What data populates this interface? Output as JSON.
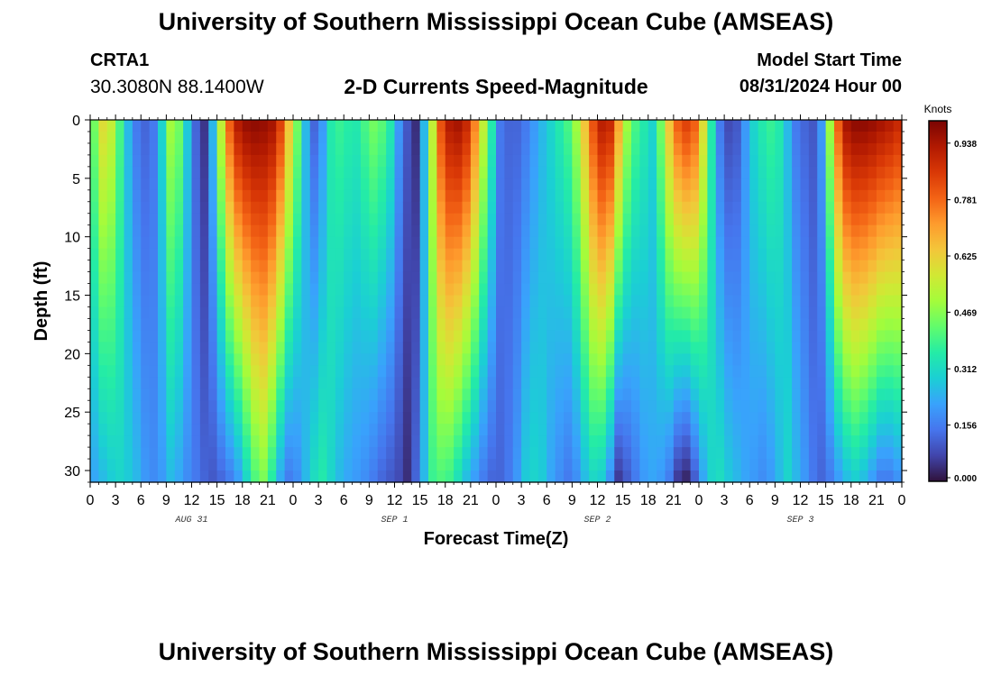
{
  "header": {
    "title": "University of Southern Mississippi Ocean Cube (AMSEAS)",
    "station_name": "CRTA1",
    "station_coords": "30.3080N  88.1400W",
    "product": "2-D Currents Speed-Magnitude",
    "model_start_label": "Model Start Time",
    "model_start_value": "08/31/2024 Hour 00"
  },
  "footer": {
    "title": "University of Southern Mississippi Ocean Cube (AMSEAS)"
  },
  "chart_data": {
    "type": "heatmap",
    "title": "2-D Currents Speed-Magnitude",
    "xlabel": "Forecast Time(Z)",
    "ylabel": "Depth (ft)",
    "x_range_hours": [
      0,
      96
    ],
    "ylim": [
      0,
      31
    ],
    "y_inverted": true,
    "y_ticks": [
      0,
      5,
      10,
      15,
      20,
      25,
      30
    ],
    "x_tick_labels": [
      "0",
      "3",
      "6",
      "9",
      "12",
      "15",
      "18",
      "21",
      "0",
      "3",
      "6",
      "9",
      "12",
      "15",
      "18",
      "21",
      "0",
      "3",
      "6",
      "9",
      "12",
      "15",
      "18",
      "21",
      "0",
      "3",
      "6",
      "9",
      "12",
      "15",
      "18",
      "21",
      "0"
    ],
    "day_labels": [
      {
        "text": "AUG 31",
        "hour": 12
      },
      {
        "text": "SEP 1",
        "hour": 36
      },
      {
        "text": "SEP 2",
        "hour": 60
      },
      {
        "text": "SEP 3",
        "hour": 84
      }
    ],
    "colorbar": {
      "title": "Knots",
      "min": 0.0,
      "max": 1.0,
      "ticks": [
        "0.938",
        "0.781",
        "0.625",
        "0.469",
        "0.312",
        "0.156",
        "0.000"
      ],
      "colors": [
        "#30123b",
        "#4145ab",
        "#4675ed",
        "#39a2fc",
        "#1bcfd4",
        "#24eca6",
        "#61fc6c",
        "#a4fc3b",
        "#d1e834",
        "#f3c63a",
        "#fe9b2d",
        "#f36315",
        "#d93806",
        "#b11901",
        "#7a0403"
      ]
    },
    "speed_profiles_knots": {
      "hours": [
        0,
        1,
        2,
        3,
        4,
        5,
        6,
        7,
        8,
        9,
        10,
        11,
        12,
        13,
        14,
        15,
        16,
        17,
        18,
        19,
        20,
        21,
        22,
        23,
        24,
        25,
        26,
        27,
        28,
        29,
        30,
        31,
        32,
        33,
        34,
        35,
        36,
        37,
        38,
        39,
        40,
        41,
        42,
        43,
        44,
        45,
        46,
        47,
        48,
        49,
        50,
        51,
        52,
        53,
        54,
        55,
        56,
        57,
        58,
        59,
        60,
        61,
        62,
        63,
        64,
        65,
        66,
        67,
        68,
        69,
        70,
        71,
        72,
        73,
        74,
        75,
        76,
        77,
        78,
        79,
        80,
        81,
        82,
        83,
        84,
        85,
        86,
        87,
        88,
        89,
        90,
        91,
        92,
        93,
        94,
        95
      ],
      "surface": [
        0.45,
        0.6,
        0.55,
        0.4,
        0.25,
        0.15,
        0.12,
        0.15,
        0.3,
        0.5,
        0.45,
        0.28,
        0.12,
        0.05,
        0.25,
        0.55,
        0.8,
        0.93,
        0.97,
        0.98,
        0.97,
        0.95,
        0.85,
        0.65,
        0.45,
        0.25,
        0.12,
        0.2,
        0.35,
        0.38,
        0.36,
        0.35,
        0.4,
        0.45,
        0.42,
        0.35,
        0.2,
        0.1,
        0.04,
        0.25,
        0.55,
        0.82,
        0.93,
        0.95,
        0.9,
        0.75,
        0.55,
        0.35,
        0.15,
        0.12,
        0.12,
        0.15,
        0.2,
        0.25,
        0.3,
        0.35,
        0.4,
        0.5,
        0.65,
        0.82,
        0.92,
        0.9,
        0.7,
        0.5,
        0.4,
        0.35,
        0.3,
        0.45,
        0.65,
        0.8,
        0.85,
        0.8,
        0.6,
        0.35,
        0.15,
        0.08,
        0.1,
        0.2,
        0.3,
        0.35,
        0.38,
        0.35,
        0.25,
        0.15,
        0.12,
        0.1,
        0.2,
        0.5,
        0.8,
        0.95,
        0.98,
        0.98,
        0.97,
        0.95,
        0.93,
        0.9
      ],
      "bottom": [
        0.22,
        0.25,
        0.28,
        0.3,
        0.28,
        0.25,
        0.2,
        0.18,
        0.2,
        0.25,
        0.22,
        0.18,
        0.15,
        0.12,
        0.1,
        0.12,
        0.15,
        0.2,
        0.3,
        0.4,
        0.45,
        0.35,
        0.22,
        0.15,
        0.18,
        0.25,
        0.32,
        0.35,
        0.3,
        0.25,
        0.22,
        0.2,
        0.18,
        0.15,
        0.12,
        0.1,
        0.08,
        0.04,
        0.12,
        0.25,
        0.38,
        0.4,
        0.38,
        0.32,
        0.25,
        0.2,
        0.15,
        0.12,
        0.12,
        0.15,
        0.2,
        0.28,
        0.3,
        0.28,
        0.22,
        0.18,
        0.15,
        0.18,
        0.25,
        0.3,
        0.28,
        0.18,
        0.05,
        0.1,
        0.15,
        0.2,
        0.22,
        0.2,
        0.15,
        0.05,
        0.02,
        0.1,
        0.22,
        0.3,
        0.32,
        0.28,
        0.25,
        0.22,
        0.2,
        0.18,
        0.2,
        0.25,
        0.3,
        0.25,
        0.2,
        0.15,
        0.12,
        0.15,
        0.2,
        0.25,
        0.28,
        0.25,
        0.2,
        0.15,
        0.15,
        0.18
      ]
    }
  }
}
